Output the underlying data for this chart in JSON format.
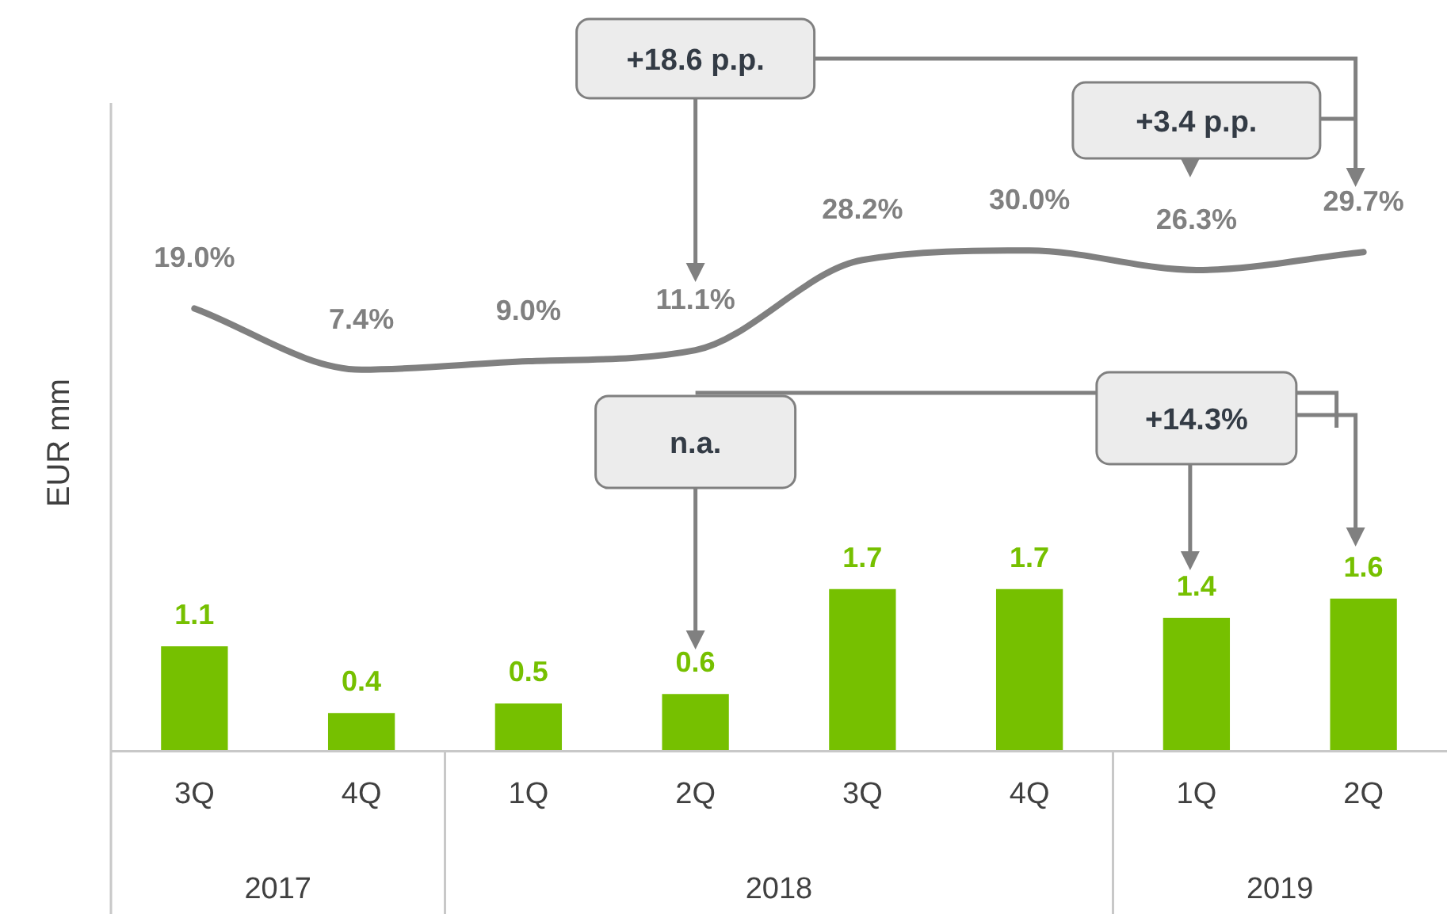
{
  "chart_data": {
    "type": "bar",
    "ylabel": "EUR mm",
    "categories": [
      "3Q",
      "4Q",
      "1Q",
      "2Q",
      "3Q",
      "4Q",
      "1Q",
      "2Q"
    ],
    "ylim": [
      0,
      6.8
    ],
    "y2lim": [
      -65,
      58
    ],
    "series": [
      {
        "color": "#76c000",
        "values": [
          1.1,
          0.4,
          0.5,
          0.6,
          1.7,
          1.7,
          1.4,
          1.6
        ],
        "value_labels": [
          "1.1",
          "0.4",
          "0.5",
          "0.6",
          "1.7",
          "1.7",
          "1.4",
          "1.6"
        ]
      },
      {
        "type": "line",
        "axis": "y2",
        "color": "#808080",
        "marker": "none",
        "line_style": "solid",
        "values": [
          19.0,
          7.4,
          9.0,
          11.1,
          28.2,
          30.0,
          26.3,
          29.7
        ],
        "value_labels": [
          "19.0%",
          "7.4%",
          "9.0%",
          "11.1%",
          "28.2%",
          "30.0%",
          "26.3%",
          "29.7%"
        ]
      }
    ],
    "annotations": [
      "2017",
      "2018",
      "2019",
      "+18.6 p.p.",
      "+3.4 p.p.",
      "n.a.",
      "+14.3%"
    ],
    "grid": false,
    "legend": false
  }
}
